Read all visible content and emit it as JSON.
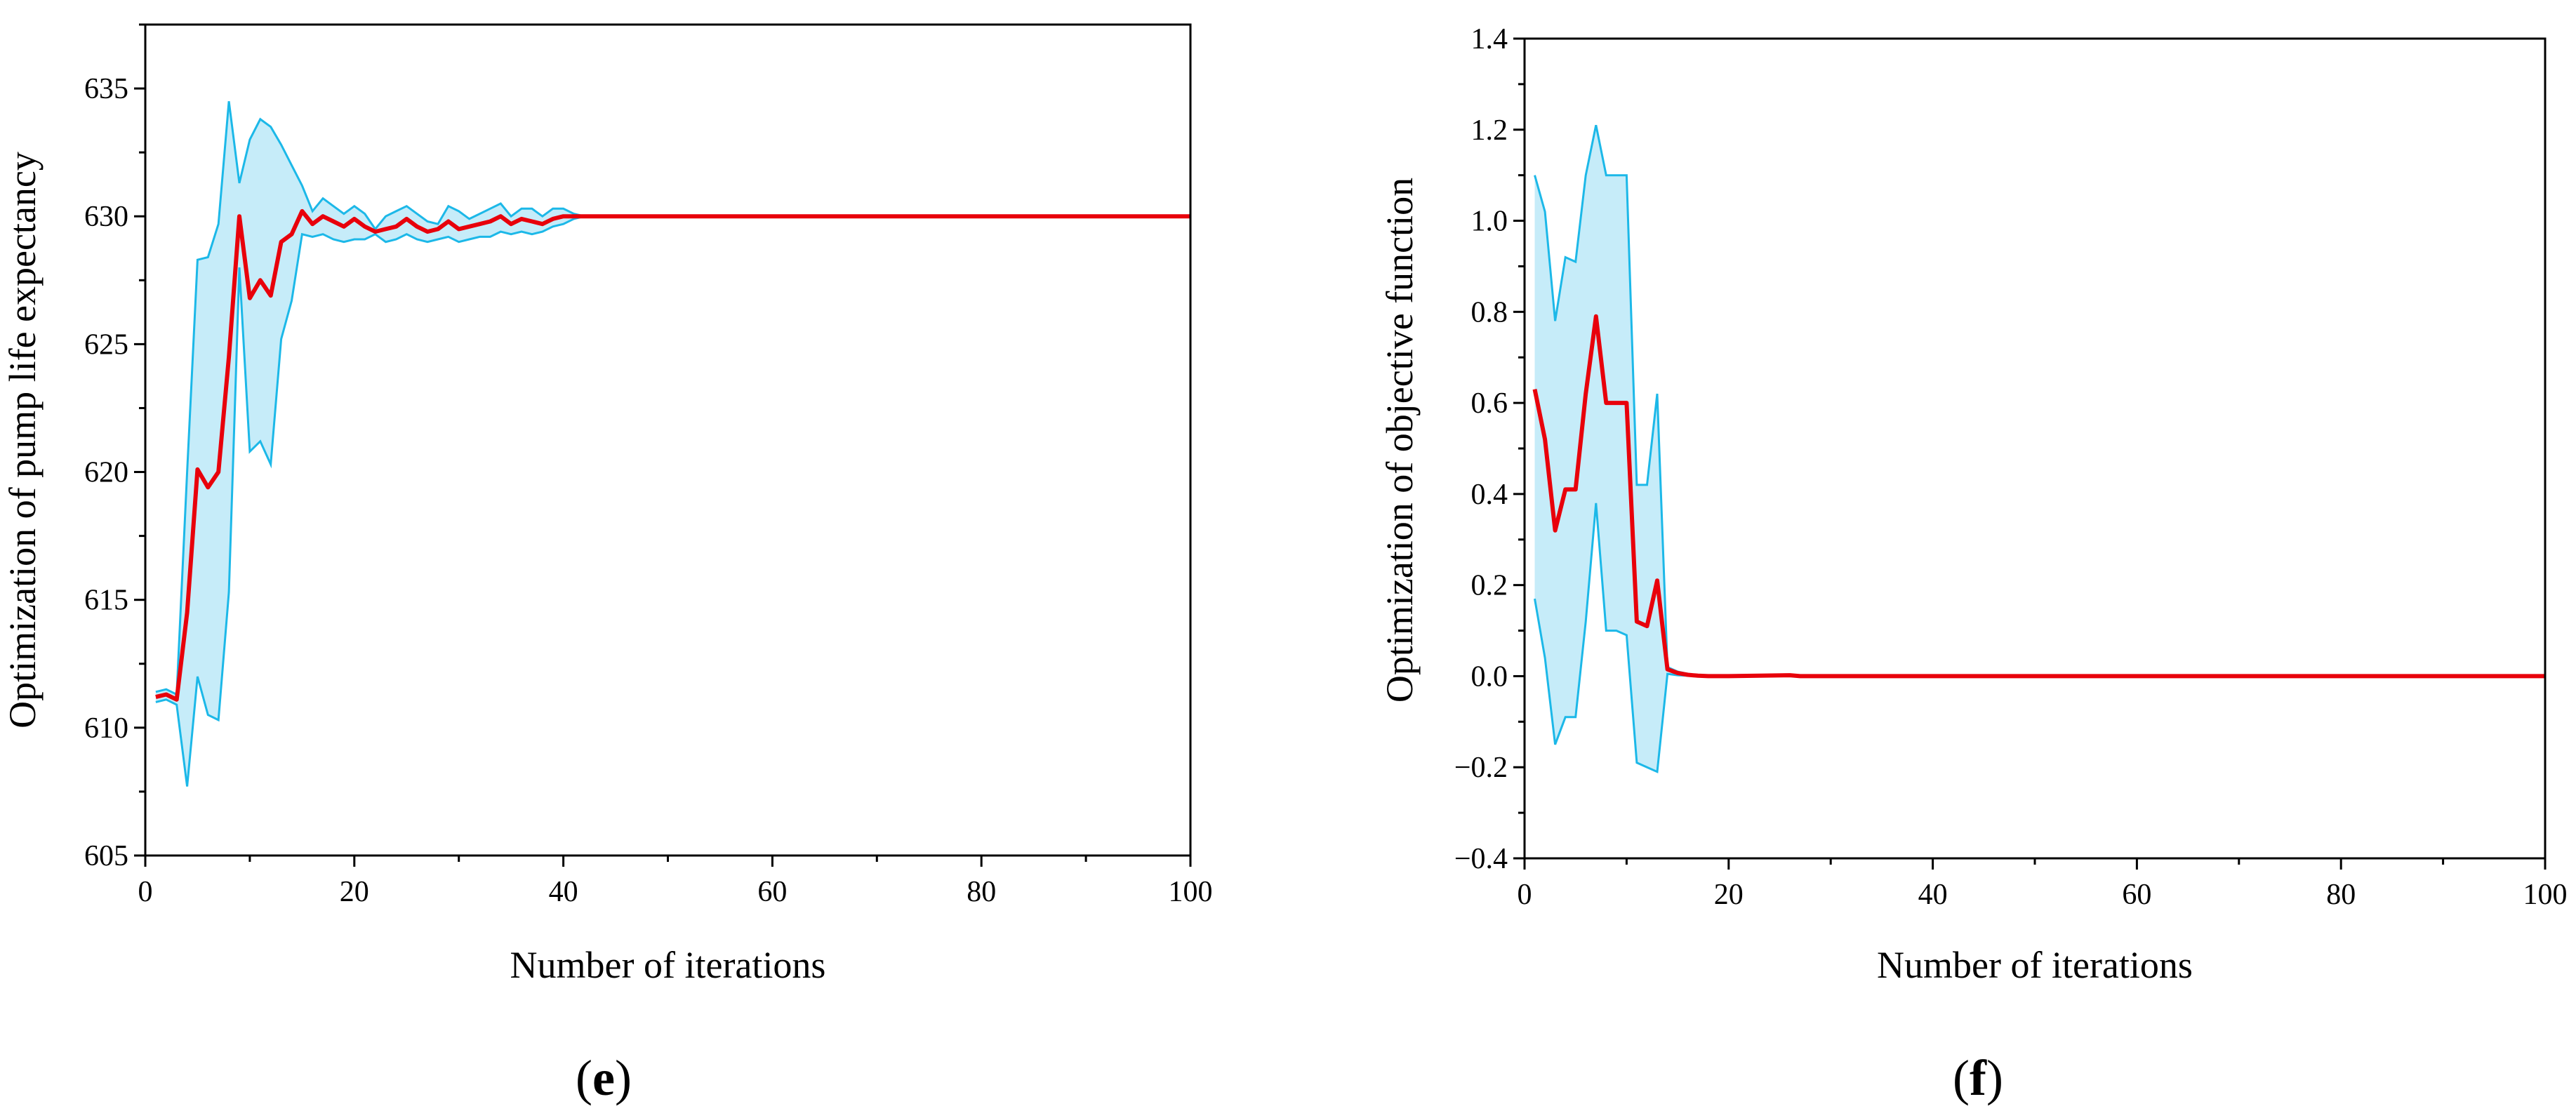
{
  "chart_data": [
    {
      "type": "line",
      "panel_label": "e",
      "xlabel": "Number of iterations",
      "ylabel": "Optimization of pump life expectancy",
      "xlim": [
        0,
        100
      ],
      "ylim": [
        605,
        637.5
      ],
      "xticks": [
        0,
        20,
        40,
        60,
        80,
        100
      ],
      "yticks": [
        605,
        610,
        615,
        620,
        625,
        630,
        635
      ],
      "grid": false,
      "colors": {
        "mean": "#e8000b",
        "band_fill": "#c6ecf9",
        "band_edge": "#1cb8e8"
      },
      "series": [
        {
          "x": [
            1,
            2,
            3,
            4,
            5,
            6,
            7,
            8,
            9,
            10,
            11,
            12,
            13,
            14,
            15,
            16,
            17,
            18,
            19,
            20,
            21,
            22,
            23,
            24,
            25,
            26,
            27,
            28,
            29,
            30,
            31,
            32,
            33,
            34,
            35,
            36,
            37,
            38,
            39,
            40,
            41,
            42,
            43,
            44,
            45,
            100
          ],
          "values": [
            611.2,
            611.3,
            611.1,
            614.5,
            620.1,
            619.4,
            620.0,
            624.5,
            630.0,
            626.8,
            627.5,
            626.9,
            629.0,
            629.3,
            630.2,
            629.7,
            630.0,
            629.8,
            629.6,
            629.9,
            629.6,
            629.4,
            629.5,
            629.6,
            629.9,
            629.6,
            629.4,
            629.5,
            629.8,
            629.5,
            629.6,
            629.7,
            629.8,
            630.0,
            629.7,
            629.9,
            629.8,
            629.7,
            629.9,
            630.0,
            630.0,
            630.0,
            630.0,
            630.0,
            630.0,
            630.0
          ]
        }
      ],
      "band": {
        "x": [
          1,
          2,
          3,
          4,
          5,
          6,
          7,
          8,
          9,
          10,
          11,
          12,
          13,
          14,
          15,
          16,
          17,
          18,
          19,
          20,
          21,
          22,
          23,
          24,
          25,
          26,
          27,
          28,
          29,
          30,
          31,
          32,
          33,
          34,
          35,
          36,
          37,
          38,
          39,
          40,
          41,
          42,
          43,
          44,
          45,
          100
        ],
        "upper": [
          611.4,
          611.5,
          611.3,
          620.0,
          628.3,
          628.4,
          629.7,
          634.5,
          631.3,
          633.0,
          633.8,
          633.5,
          632.8,
          632.0,
          631.2,
          630.2,
          630.7,
          630.4,
          630.1,
          630.4,
          630.1,
          629.5,
          630.0,
          630.2,
          630.4,
          630.1,
          629.8,
          629.7,
          630.4,
          630.2,
          629.9,
          630.1,
          630.3,
          630.5,
          630.0,
          630.3,
          630.3,
          630.0,
          630.3,
          630.3,
          630.1,
          630.0,
          630.0,
          630.0,
          630.0,
          630.0
        ],
        "lower": [
          611.0,
          611.1,
          610.9,
          607.7,
          612.0,
          610.5,
          610.3,
          615.3,
          628.0,
          620.8,
          621.2,
          620.3,
          625.2,
          626.7,
          629.3,
          629.2,
          629.3,
          629.1,
          629.0,
          629.1,
          629.1,
          629.3,
          629.0,
          629.1,
          629.3,
          629.1,
          629.0,
          629.1,
          629.2,
          629.0,
          629.1,
          629.2,
          629.2,
          629.4,
          629.3,
          629.4,
          629.3,
          629.4,
          629.6,
          629.7,
          629.9,
          630.0,
          630.0,
          630.0,
          630.0,
          630.0
        ]
      }
    },
    {
      "type": "line",
      "panel_label": "f",
      "xlabel": "Number of iterations",
      "ylabel": "Optimization of objective function",
      "xlim": [
        0,
        100
      ],
      "ylim": [
        -0.4,
        1.4
      ],
      "xticks": [
        0,
        20,
        40,
        60,
        80,
        100
      ],
      "yticks": [
        -0.4,
        -0.2,
        0.0,
        0.2,
        0.4,
        0.6,
        0.8,
        1.0,
        1.2,
        1.4
      ],
      "ytick_labels": [
        "−0.4",
        "−0.2",
        "0.0",
        "0.2",
        "0.4",
        "0.6",
        "0.8",
        "1.0",
        "1.2",
        "1.4"
      ],
      "grid": false,
      "colors": {
        "mean": "#e8000b",
        "band_fill": "#c6ecf9",
        "band_edge": "#1cb8e8"
      },
      "series": [
        {
          "x": [
            1,
            2,
            3,
            4,
            5,
            6,
            7,
            8,
            9,
            10,
            11,
            12,
            13,
            14,
            15,
            16,
            17,
            18,
            20,
            26,
            27,
            30,
            100
          ],
          "values": [
            0.63,
            0.52,
            0.32,
            0.41,
            0.41,
            0.62,
            0.79,
            0.6,
            0.6,
            0.6,
            0.12,
            0.11,
            0.21,
            0.015,
            0.007,
            0.003,
            0.001,
            0.0,
            0.0,
            0.002,
            0.0,
            0.0,
            0.0
          ]
        }
      ],
      "band": {
        "x": [
          1,
          2,
          3,
          4,
          5,
          6,
          7,
          8,
          9,
          10,
          11,
          12,
          13,
          14,
          15,
          16,
          17,
          18,
          100
        ],
        "upper": [
          1.1,
          1.02,
          0.78,
          0.92,
          0.91,
          1.1,
          1.21,
          1.1,
          1.1,
          1.1,
          0.42,
          0.42,
          0.62,
          0.02,
          0.01,
          0.005,
          0.002,
          0.0,
          0.0
        ],
        "lower": [
          0.17,
          0.04,
          -0.15,
          -0.09,
          -0.09,
          0.12,
          0.38,
          0.1,
          0.1,
          0.09,
          -0.19,
          -0.2,
          -0.21,
          0.005,
          0.002,
          0.001,
          0.0,
          0.0,
          0.0
        ]
      }
    }
  ]
}
